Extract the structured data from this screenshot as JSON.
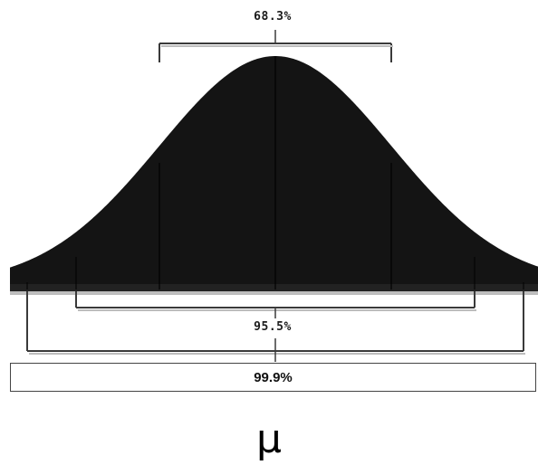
{
  "diagram": {
    "labels": {
      "one_sigma": "68.3%",
      "two_sigma": "95.5%",
      "three_sigma": "99.9%",
      "mean": "μ"
    },
    "colors": {
      "curve_fill": "#141414",
      "bracket": "#3a3a3a",
      "bracket_shadow": "#bdbdbd",
      "baseline": "#222222"
    }
  }
}
